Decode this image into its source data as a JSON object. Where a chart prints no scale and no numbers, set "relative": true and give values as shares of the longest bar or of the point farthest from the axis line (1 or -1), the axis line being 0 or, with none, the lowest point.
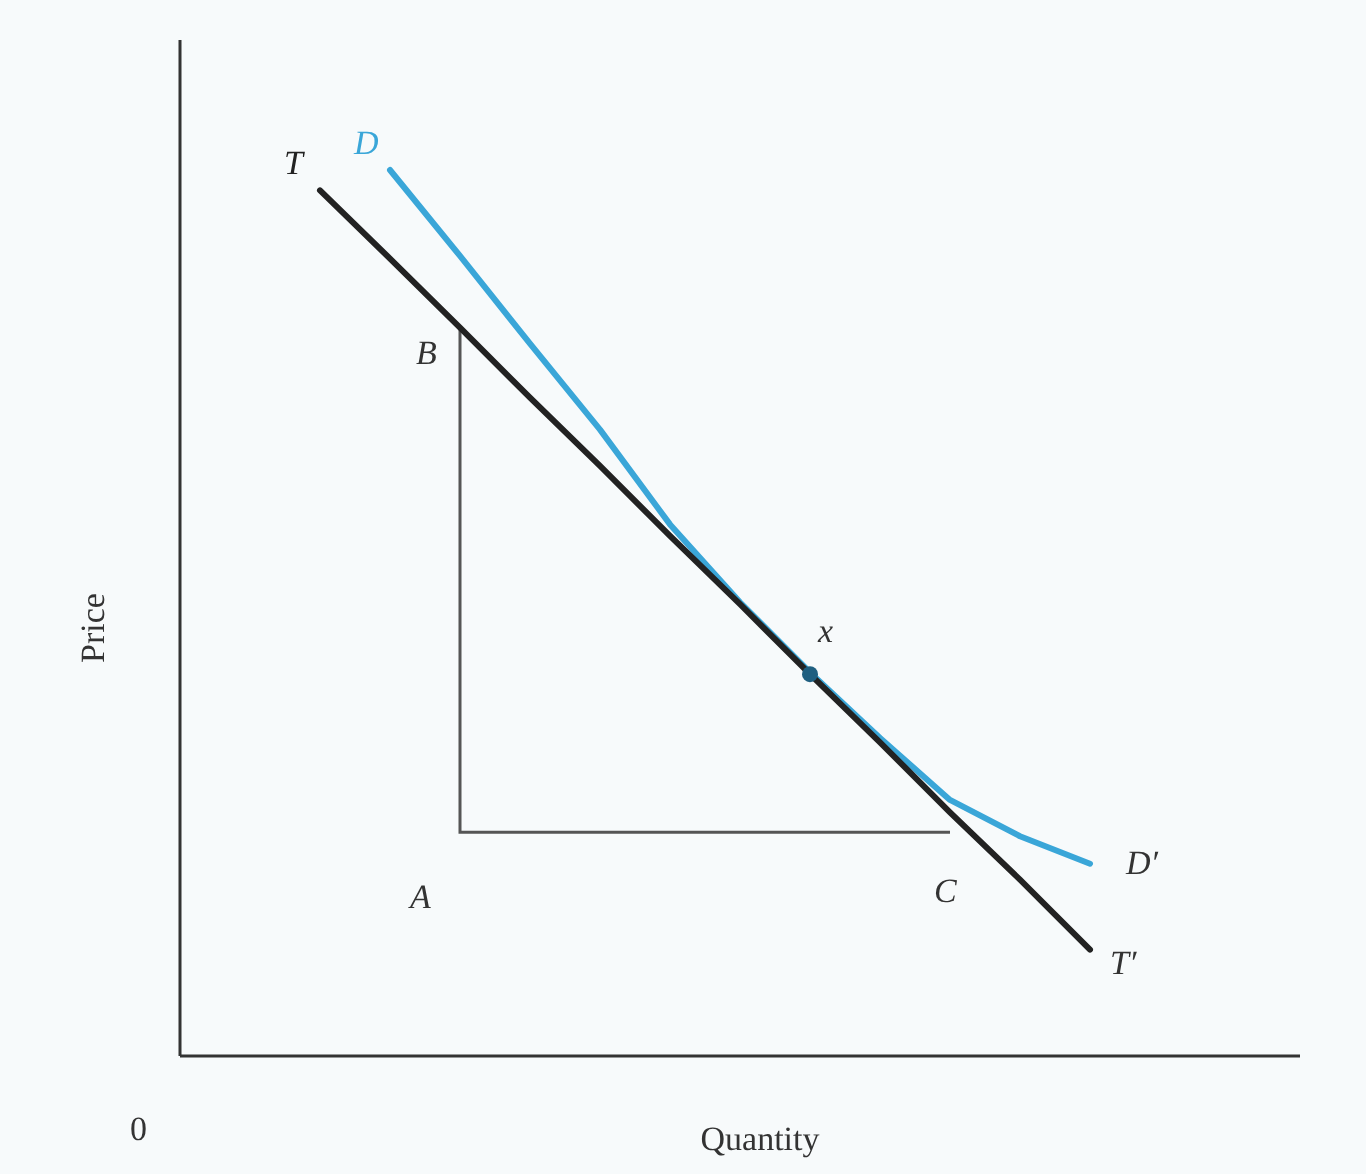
{
  "chart_data": {
    "type": "line",
    "relative": true,
    "xlabel": "Quantity",
    "ylabel": "Price",
    "categories": [
      null,
      null,
      null,
      null,
      null,
      null,
      null,
      null,
      null,
      null,
      null,
      null,
      null,
      null,
      null,
      null
    ],
    "series": [
      {
        "name": "D",
        "color": "#3aa6d8",
        "values": [
          null,
          null,
          null,
          1,
          0.903,
          0.804,
          0.707,
          0.6,
          0.512,
          0.433,
          0.359,
          0.289,
          0.248,
          0.217,
          null,
          null
        ]
      },
      {
        "name": "T",
        "color": "#222222",
        "values": [
          null,
          null,
          0.977,
          0.9,
          0.822,
          0.743,
          0.666,
          0.587,
          0.51,
          0.431,
          0.354,
          0.275,
          0.199,
          0.12,
          null,
          null
        ]
      }
    ],
    "annotations": [
      "D′",
      "T′",
      "x",
      "A",
      "B",
      "C",
      "0"
    ],
    "line_style": "solid"
  }
}
